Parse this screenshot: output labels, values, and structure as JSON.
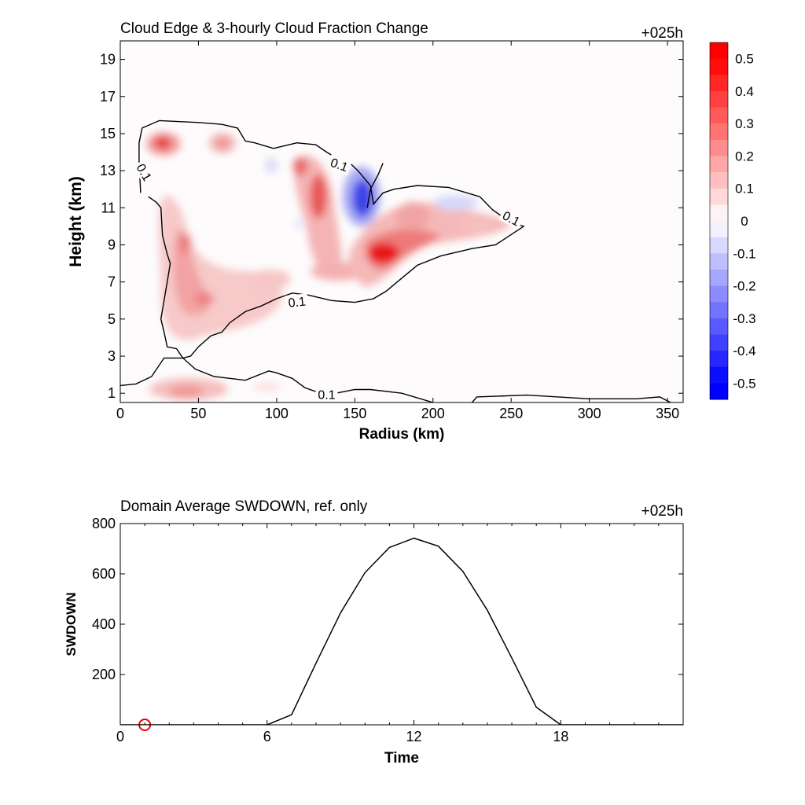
{
  "chart_data": [
    {
      "type": "heatmap",
      "title": "Cloud Edge & 3-hourly Cloud Fraction Change",
      "time_label": "+025h",
      "xlabel": "Radius (km)",
      "ylabel": "Height (km)",
      "xlim": [
        0,
        360
      ],
      "ylim": [
        0.5,
        20
      ],
      "xticks": [
        0,
        50,
        100,
        150,
        200,
        250,
        300,
        350
      ],
      "yticks": [
        1,
        3,
        5,
        7,
        9,
        11,
        13,
        15,
        17,
        19
      ],
      "colorbar": {
        "ticks": [
          0.5,
          0.4,
          0.3,
          0.2,
          0.1,
          0,
          -0.1,
          -0.2,
          -0.3,
          -0.4,
          -0.5
        ],
        "tick_labels": [
          "0.5",
          "0.4",
          "0.3",
          "0.2",
          "0.1",
          "0",
          "-0.1",
          "-0.2",
          "-0.3",
          "-0.4",
          "-0.5"
        ],
        "range": [
          -0.55,
          0.55
        ],
        "positive_color": "#ff0000",
        "negative_color": "#0000ff"
      },
      "contour_level": 0.1,
      "contour_labels": [
        {
          "text": "0.1",
          "x": 15,
          "y": 12.9,
          "angle": 60
        },
        {
          "text": "0.1",
          "x": 140,
          "y": 13.3,
          "angle": 20
        },
        {
          "text": "0.1",
          "x": 250,
          "y": 10.4,
          "angle": 28
        },
        {
          "text": "0.1",
          "x": 113,
          "y": 5.9,
          "angle": -6
        },
        {
          "text": "0.1",
          "x": 132,
          "y": 0.9,
          "angle": 0
        }
      ],
      "cloud_edge_contours": [
        [
          [
            13,
            11.8
          ],
          [
            12,
            13.5
          ],
          [
            12,
            14.5
          ],
          [
            14,
            15.3
          ],
          [
            25,
            15.7
          ],
          [
            50,
            15.6
          ],
          [
            65,
            15.5
          ],
          [
            75,
            15.3
          ],
          [
            80,
            14.6
          ],
          [
            86,
            14.5
          ],
          [
            98,
            14.2
          ],
          [
            113,
            14.5
          ],
          [
            125,
            14.4
          ],
          [
            132,
            14.0
          ],
          [
            140,
            13.6
          ],
          [
            147,
            13.4
          ],
          [
            152,
            13.0
          ],
          [
            160,
            12.2
          ],
          [
            162,
            11.2
          ],
          [
            168,
            11.8
          ],
          [
            175,
            12.0
          ],
          [
            190,
            12.2
          ],
          [
            210,
            12.1
          ],
          [
            230,
            11.6
          ],
          [
            238,
            10.9
          ],
          [
            248,
            10.3
          ],
          [
            258,
            10.0
          ],
          [
            240,
            9.0
          ],
          [
            225,
            8.8
          ],
          [
            205,
            8.4
          ],
          [
            190,
            7.9
          ],
          [
            180,
            7.2
          ],
          [
            170,
            6.5
          ],
          [
            162,
            6.1
          ],
          [
            150,
            5.9
          ],
          [
            135,
            6.0
          ],
          [
            120,
            6.3
          ],
          [
            110,
            6.4
          ],
          [
            100,
            6.1
          ],
          [
            90,
            5.7
          ],
          [
            80,
            5.4
          ],
          [
            70,
            4.8
          ],
          [
            65,
            4.3
          ],
          [
            58,
            4.1
          ],
          [
            50,
            3.5
          ],
          [
            45,
            3.0
          ],
          [
            40,
            2.9
          ],
          [
            36,
            3.4
          ],
          [
            30,
            3.5
          ],
          [
            28,
            4.3
          ],
          [
            26,
            5.0
          ],
          [
            28,
            6.0
          ],
          [
            30,
            7.0
          ],
          [
            32,
            8.0
          ],
          [
            30,
            8.5
          ],
          [
            27,
            9.5
          ],
          [
            26,
            11.0
          ],
          [
            23,
            11.3
          ],
          [
            18,
            11.6
          ]
        ],
        [
          [
            158,
            11.0
          ],
          [
            160,
            12.0
          ],
          [
            165,
            12.8
          ],
          [
            168,
            13.4
          ]
        ],
        [
          [
            -2,
            1.4
          ],
          [
            10,
            1.5
          ],
          [
            20,
            1.9
          ],
          [
            28,
            2.9
          ],
          [
            40,
            2.9
          ],
          [
            48,
            2.3
          ],
          [
            60,
            1.9
          ],
          [
            80,
            1.7
          ],
          [
            95,
            2.2
          ],
          [
            100,
            2.1
          ],
          [
            110,
            1.8
          ],
          [
            118,
            1.3
          ],
          [
            128,
            1.0
          ],
          [
            138,
            1.0
          ],
          [
            150,
            1.2
          ],
          [
            160,
            1.2
          ],
          [
            180,
            1.0
          ],
          [
            200,
            0.5
          ]
        ],
        [
          [
            225,
            0.5
          ],
          [
            228,
            0.8
          ],
          [
            260,
            0.9
          ],
          [
            300,
            0.7
          ],
          [
            330,
            0.7
          ],
          [
            345,
            0.8
          ],
          [
            352,
            0.5
          ]
        ]
      ]
    },
    {
      "type": "line",
      "title": "Domain Average SWDOWN, ref. only",
      "time_label": "+025h",
      "xlabel": "Time",
      "ylabel": "SWDOWN",
      "xlim": [
        0,
        23
      ],
      "ylim": [
        0,
        800
      ],
      "xticks": [
        0,
        6,
        12,
        18
      ],
      "yticks": [
        200,
        400,
        600,
        800
      ],
      "x": [
        0,
        1,
        2,
        3,
        4,
        5,
        6,
        7,
        8,
        9,
        10,
        11,
        12,
        13,
        14,
        15,
        16,
        17,
        18,
        19,
        20,
        21,
        22,
        23
      ],
      "values": [
        0,
        0,
        0,
        0,
        0,
        0,
        0,
        40,
        245,
        445,
        605,
        705,
        742,
        710,
        610,
        455,
        265,
        70,
        0,
        0,
        0,
        0,
        0,
        0
      ],
      "marker": {
        "x": 1,
        "y": 0,
        "color": "#ee0000"
      }
    }
  ]
}
